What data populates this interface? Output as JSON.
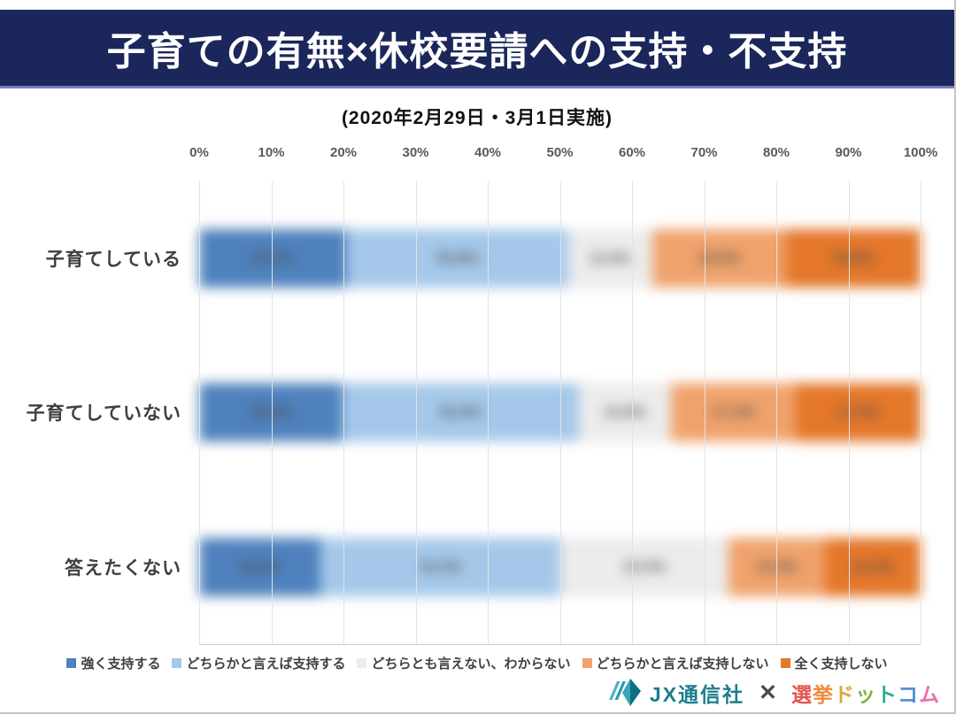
{
  "header": {
    "title": "子育ての有無×休校要請への支持・不支持",
    "bg_color": "#1b265b",
    "underline_color": "#7380bb"
  },
  "subtitle": "(2020年2月29日・3月1日実施)",
  "chart_data": {
    "type": "bar",
    "variant": "horizontal-stacked-100percent",
    "title": "子育ての有無×休校要請への支持・不支持",
    "subtitle": "(2020年2月29日・3月1日実施)",
    "categories": [
      "子育てしている",
      "子育てしていない",
      "答えたくない"
    ],
    "series": [
      {
        "name": "強く支持する",
        "color": "#4e81bd",
        "values": [
          20.4,
          19.8,
          16.8
        ]
      },
      {
        "name": "どちらかと言えば支持する",
        "color": "#a5c8ea",
        "values": [
          30.8,
          32.8,
          33.3
        ]
      },
      {
        "name": "どちらとも言えない、わからない",
        "color": "#ececec",
        "values": [
          11.6,
          12.8,
          23.3
        ]
      },
      {
        "name": "どちらかと言えば支持しない",
        "color": "#f0a26b",
        "values": [
          18.6,
          17.3,
          13.3
        ]
      },
      {
        "name": "全く支持しない",
        "color": "#e4772a",
        "values": [
          18.6,
          17.3,
          13.3
        ]
      }
    ],
    "x_ticks": [
      "0%",
      "10%",
      "20%",
      "30%",
      "40%",
      "50%",
      "60%",
      "70%",
      "80%",
      "90%",
      "100%"
    ],
    "xlim": [
      0,
      100
    ],
    "value_suffix": "%",
    "grid": true,
    "legend_position": "bottom",
    "values_blurred": true
  },
  "footer": {
    "jx_brand": "JX通信社",
    "jx_color": "#1c7d8f",
    "separator": "✕",
    "senkyo_brand": {
      "text": "選挙ドットコム",
      "chars": [
        {
          "char": "選",
          "color": "#e8534e"
        },
        {
          "char": "挙",
          "color": "#f08a3e"
        },
        {
          "char": "ド",
          "color": "#dca83a"
        },
        {
          "char": "ッ",
          "color": "#7db842"
        },
        {
          "char": "ト",
          "color": "#2fa98d"
        },
        {
          "char": "コ",
          "color": "#4a8fd4"
        },
        {
          "char": "ム",
          "color": "#e970a8"
        }
      ]
    }
  }
}
